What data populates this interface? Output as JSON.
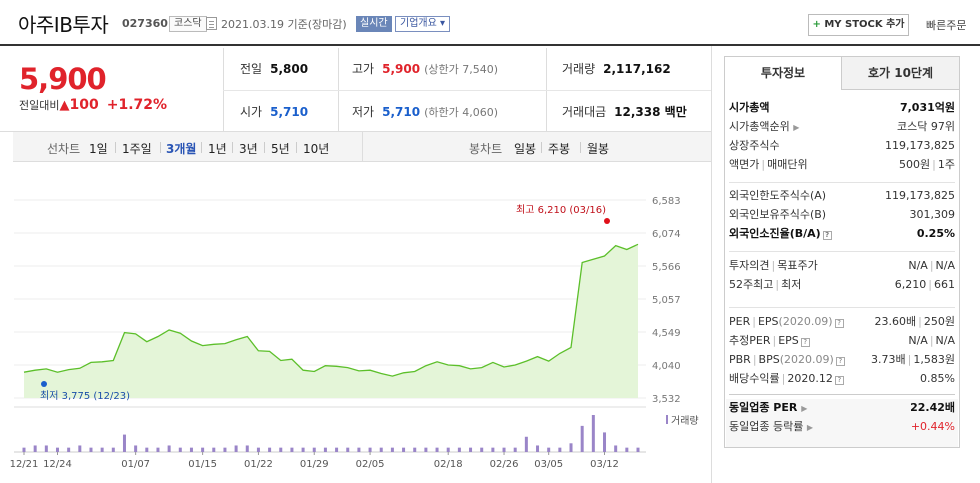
{
  "header": {
    "title": "아주IB투자",
    "code": "027360",
    "market": "코스닥",
    "date_text": "2021.03.19 기준(장마감)",
    "realtime": "실시간",
    "company_overview": "기업개요 ▾",
    "mystock_button": "MY STOCK 추가",
    "mystock_plus": "+",
    "quick_order": "빠른주문"
  },
  "summary": {
    "price": "5,900",
    "change_label": "전일대비",
    "change_arrow": "▲",
    "change": "100",
    "change_pct": "+1.72%",
    "prev_label": "전일",
    "prev": "5,800",
    "high_label": "고가",
    "high": "5,900",
    "upper_limit": "(상한가 7,540)",
    "volume_label": "거래량",
    "volume": "2,117,162",
    "open_label": "시가",
    "open": "5,710",
    "low_label": "저가",
    "low": "5,710",
    "lower_limit": "(하한가 4,060)",
    "amount_label": "거래대금",
    "amount": "12,338 백만"
  },
  "period_bar": {
    "line_label": "선차트",
    "line_items": [
      "1일",
      "1주일",
      "3개월",
      "1년",
      "3년",
      "5년",
      "10년"
    ],
    "active_index": 2,
    "candle_label": "봉차트",
    "candle_items": [
      "일봉",
      "주봉",
      "월봉"
    ]
  },
  "chart_data": {
    "type": "line",
    "series": [
      {
        "values": [
          3930,
          3960,
          3980,
          3930,
          3970,
          3990,
          4080,
          4090,
          4110,
          4540,
          4520,
          4400,
          4480,
          4580,
          4530,
          4410,
          4340,
          4360,
          4370,
          4430,
          4480,
          4260,
          4250,
          4110,
          4130,
          3960,
          3940,
          4030,
          4020,
          4000,
          3950,
          3960,
          3910,
          3870,
          3920,
          3940,
          4030,
          4090,
          4040,
          4030,
          3980,
          4000,
          4080,
          4010,
          4040,
          4100,
          4170,
          4100,
          4220,
          4310,
          5620,
          5670,
          5720,
          5880,
          5820,
          5900
        ]
      },
      {
        "name": "거래량",
        "values": [
          2,
          3,
          3,
          2,
          2,
          3,
          2,
          2,
          2,
          8,
          3,
          2,
          2,
          3,
          2,
          2,
          2,
          2,
          2,
          3,
          3,
          2,
          2,
          2,
          2,
          2,
          2,
          2,
          2,
          2,
          2,
          2,
          2,
          2,
          2,
          2,
          2,
          2,
          2,
          2,
          2,
          2,
          2,
          2,
          2,
          7,
          3,
          2,
          2,
          4,
          12,
          17,
          9,
          3,
          2,
          2
        ]
      }
    ],
    "x_labels": [
      "12/21",
      "12/24",
      "01/07",
      "01/15",
      "01/22",
      "01/29",
      "02/05",
      "02/18",
      "02/26",
      "03/05",
      "03/12"
    ],
    "x_label_index": [
      0,
      3,
      10,
      16,
      21,
      26,
      31,
      38,
      43,
      47,
      52
    ],
    "y_ticks": [
      6583,
      6074,
      5566,
      5057,
      4549,
      4040,
      3532
    ],
    "y_tick_labels": [
      "6,583",
      "6,074",
      "5,566",
      "5,057",
      "4,549",
      "4,040",
      "3,532"
    ],
    "ylim": [
      3532,
      6583
    ],
    "max_label": "최고 6,210 (03/16)",
    "min_label": "최저 3,775 (12/23)",
    "volume_legend": "거래량",
    "colors": {
      "line": "#5cbf2a",
      "fill": "#e4f5d8",
      "volume": "#9a85c8",
      "max_marker": "#e0101a",
      "min_marker": "#1a5fcc"
    }
  },
  "right_panel": {
    "tabs": [
      "투자정보",
      "호가 10단계"
    ],
    "sections": [
      {
        "rows": [
          {
            "k": "시가총액",
            "v": "7,031억원",
            "bold": true
          },
          {
            "k": "시가총액순위",
            "v": "코스닥 97위",
            "arrow": true
          },
          {
            "k": "상장주식수",
            "v": "119,173,825"
          },
          {
            "k": "액면가",
            "k2": "매매단위",
            "v": "500원",
            "v2": "1주"
          }
        ]
      },
      {
        "rows": [
          {
            "k": "외국인한도주식수(A)",
            "v": "119,173,825"
          },
          {
            "k": "외국인보유주식수(B)",
            "v": "301,309"
          },
          {
            "k": "외국인소진율(B/A)",
            "v": "0.25%",
            "bold": true,
            "q": true
          }
        ]
      },
      {
        "rows": [
          {
            "k": "투자의견",
            "k2": "목표주가",
            "v": "N/A",
            "v2": "N/A"
          },
          {
            "k": "52주최고",
            "k2": "최저",
            "v": "6,210",
            "v2": "661"
          }
        ]
      },
      {
        "rows": [
          {
            "k": "PER",
            "k2": "EPS",
            "p2": "(2020.09)",
            "q": true,
            "v": "23.60배",
            "v2": "250원"
          },
          {
            "k": "추정PER",
            "k2": "EPS",
            "q": true,
            "v": "N/A",
            "v2": "N/A"
          },
          {
            "k": "PBR",
            "k2": "BPS",
            "p2": "(2020.09)",
            "q": true,
            "v": "3.73배",
            "v2": "1,583원"
          },
          {
            "k": "배당수익률",
            "k2": "2020.12",
            "q": true,
            "v": "0.85%"
          }
        ]
      },
      {
        "rows": [
          {
            "k": "동일업종 PER",
            "arrow": true,
            "v": "22.42배",
            "bold": true
          },
          {
            "k": "동일업종 등락률",
            "arrow": true,
            "v": "+0.44%",
            "up": true
          }
        ]
      }
    ]
  }
}
